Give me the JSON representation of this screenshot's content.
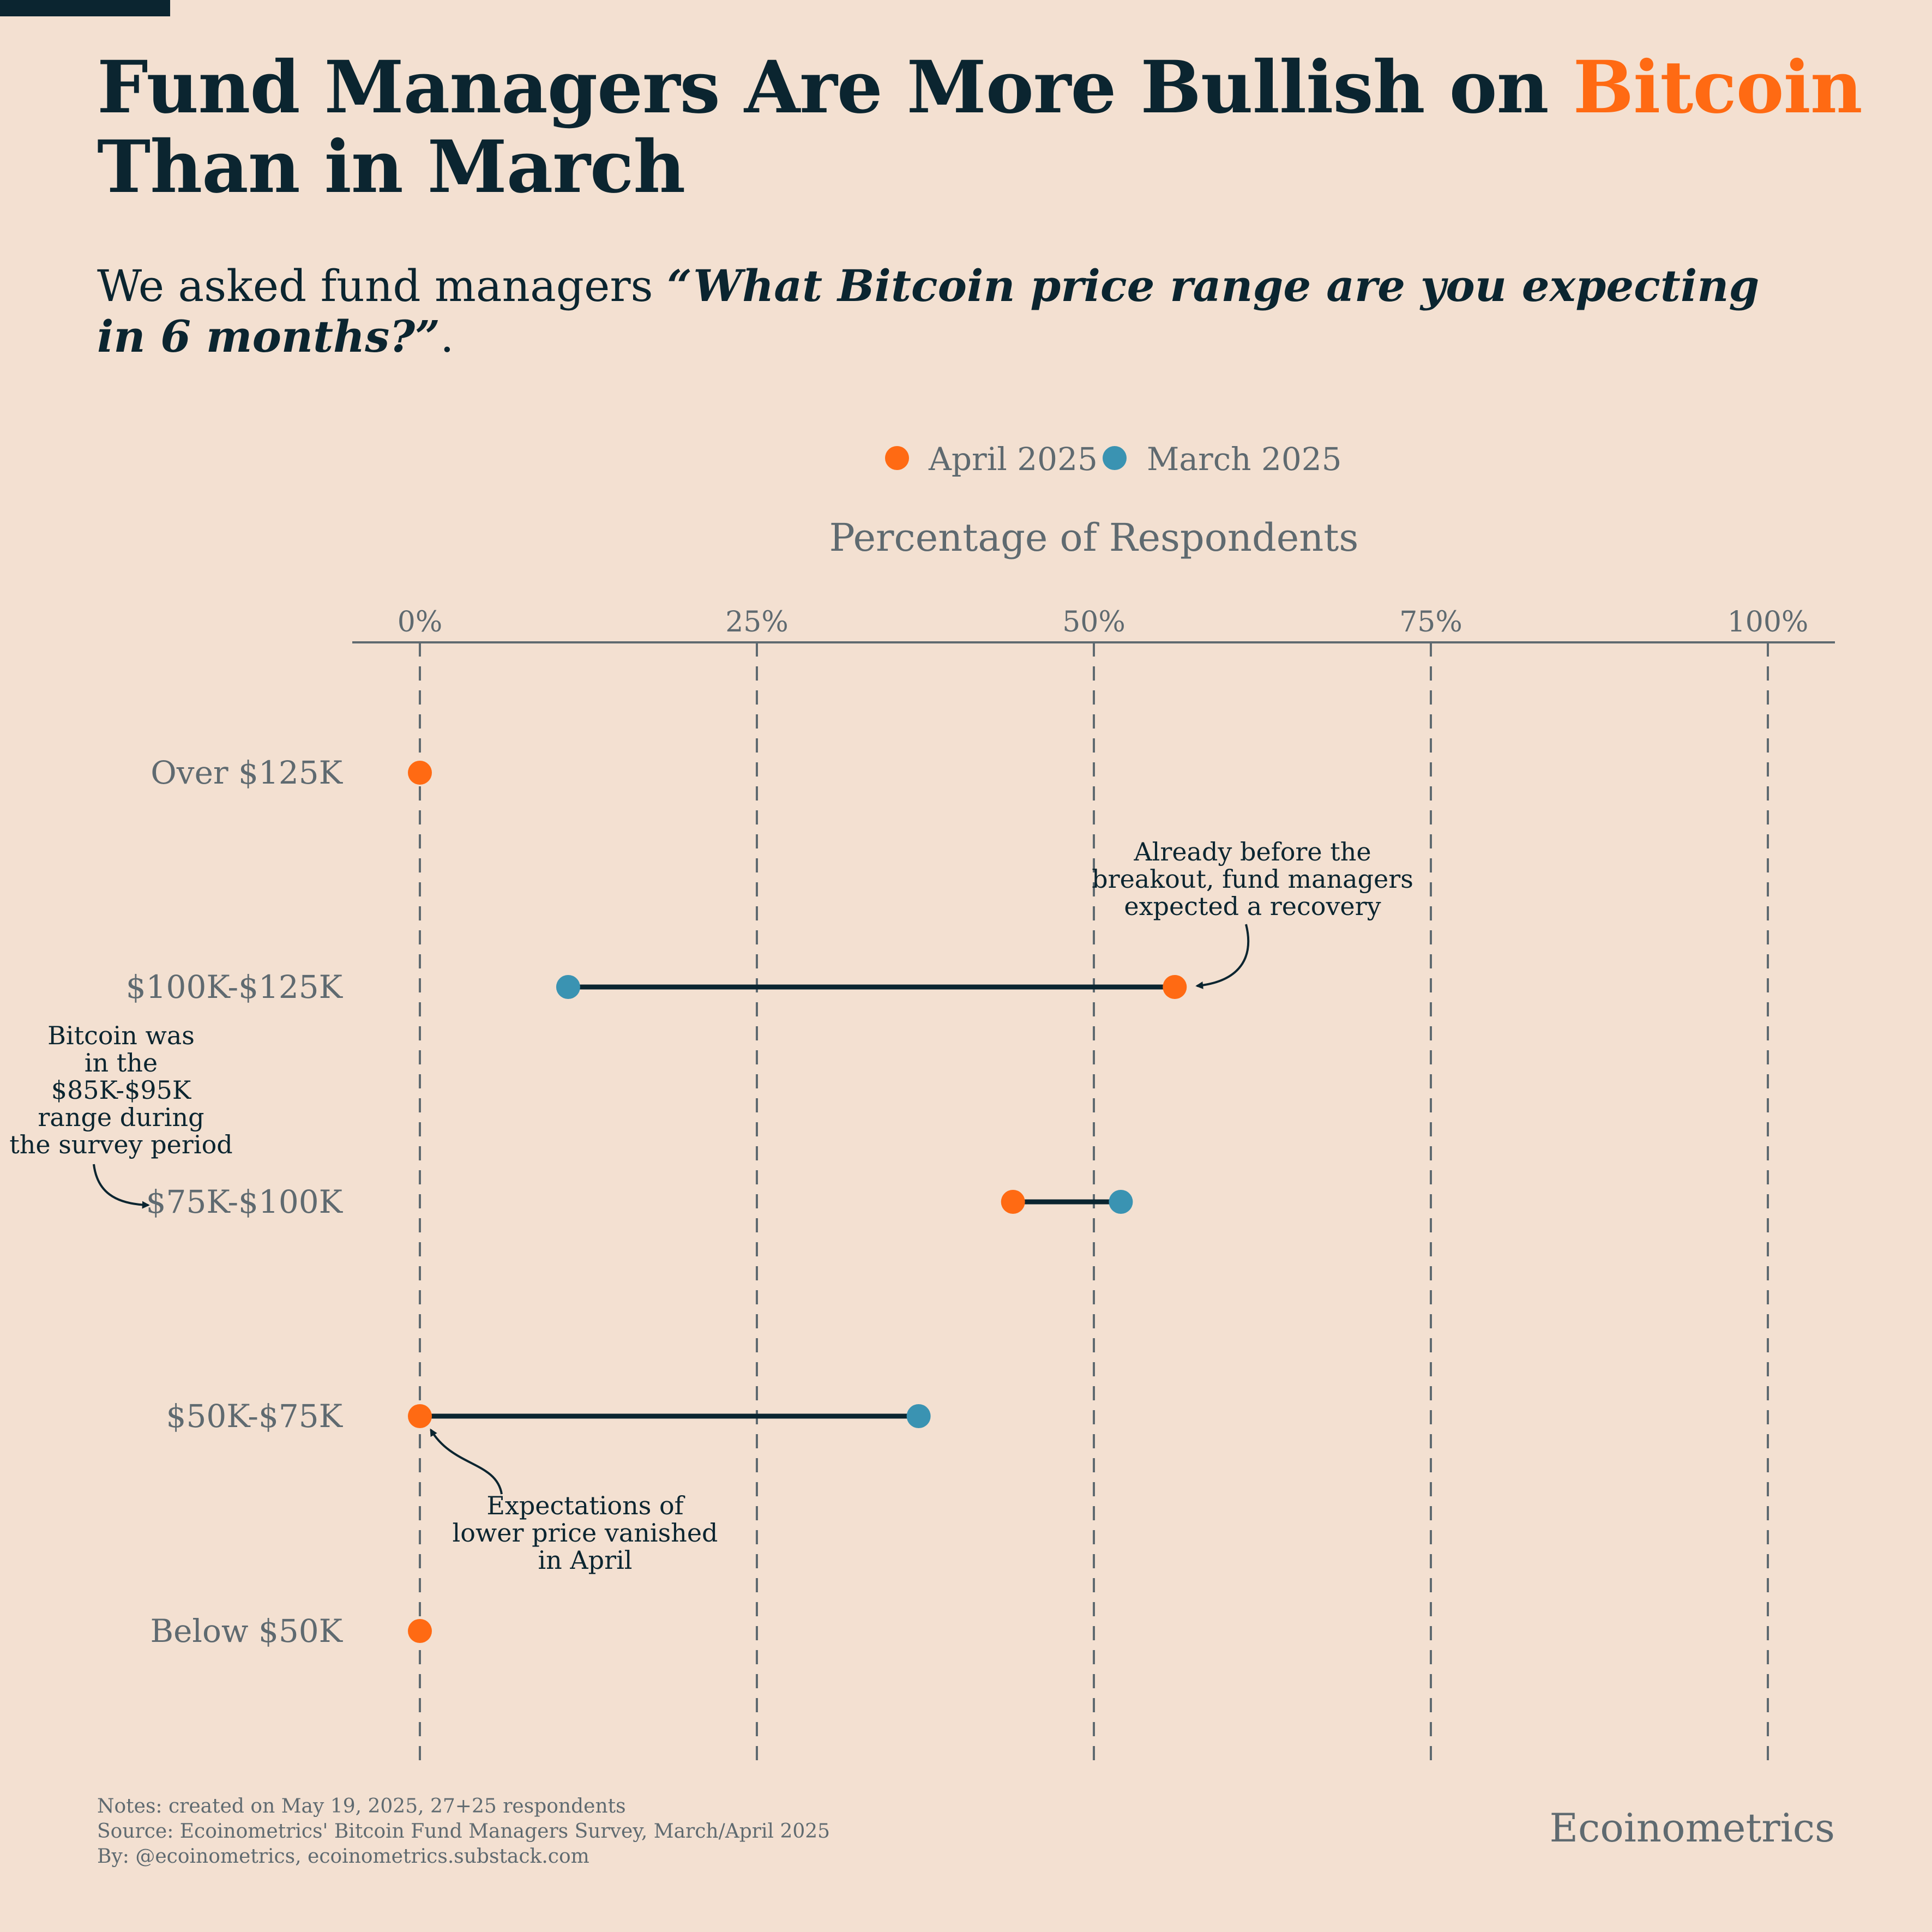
{
  "header": {
    "title_part1": "Fund Managers Are More Bullish on ",
    "title_accent": "Bitcoin",
    "title_part2": "Than in March",
    "subtitle_prefix": "We asked fund managers ",
    "subtitle_quote_line1": "“What Bitcoin price range are you expecting",
    "subtitle_quote_line2": "in 6 months?”",
    "subtitle_suffix": "."
  },
  "colors": {
    "april": "#ff6a13",
    "march": "#3a93b2",
    "line": "#0b2530",
    "text_muted": "#5f6a70"
  },
  "chart_data": {
    "type": "dumbbell",
    "xlabel": "Percentage of Respondents",
    "xlim": [
      -5,
      105
    ],
    "xticks": [
      0,
      25,
      50,
      75,
      100
    ],
    "xtick_labels": [
      "0%",
      "25%",
      "50%",
      "75%",
      "100%"
    ],
    "grid": "vertical dashed",
    "legend_position": "top-center",
    "categories": [
      "Over $125K",
      "$100K-$125K",
      "$75K-$100K",
      "$50K-$75K",
      "Below $50K"
    ],
    "series": [
      {
        "name": "April 2025",
        "color": "#ff6a13",
        "values": [
          0,
          56,
          44,
          0,
          0
        ]
      },
      {
        "name": "March 2025",
        "color": "#3a93b2",
        "values": [
          null,
          11,
          52,
          37,
          null
        ]
      }
    ],
    "annotations": [
      {
        "lines": [
          "Already before the",
          "breakout, fund managers",
          "expected a recovery"
        ],
        "category": "$100K-$125K"
      },
      {
        "lines": [
          "Bitcoin was",
          "in the",
          "$85K-$95K",
          "range during",
          "the survey period"
        ],
        "category": "$75K-$100K"
      },
      {
        "lines": [
          "Expectations of",
          "lower price vanished",
          "in April"
        ],
        "category": "$50K-$75K"
      }
    ]
  },
  "footer": {
    "notes": "Notes: created on May 19, 2025, 27+25 respondents",
    "source": "Source: Ecoinometrics' Bitcoin Fund Managers Survey, March/April 2025",
    "by": "By: @ecoinometrics, ecoinometrics.substack.com",
    "brand": "Ecoinometrics"
  }
}
